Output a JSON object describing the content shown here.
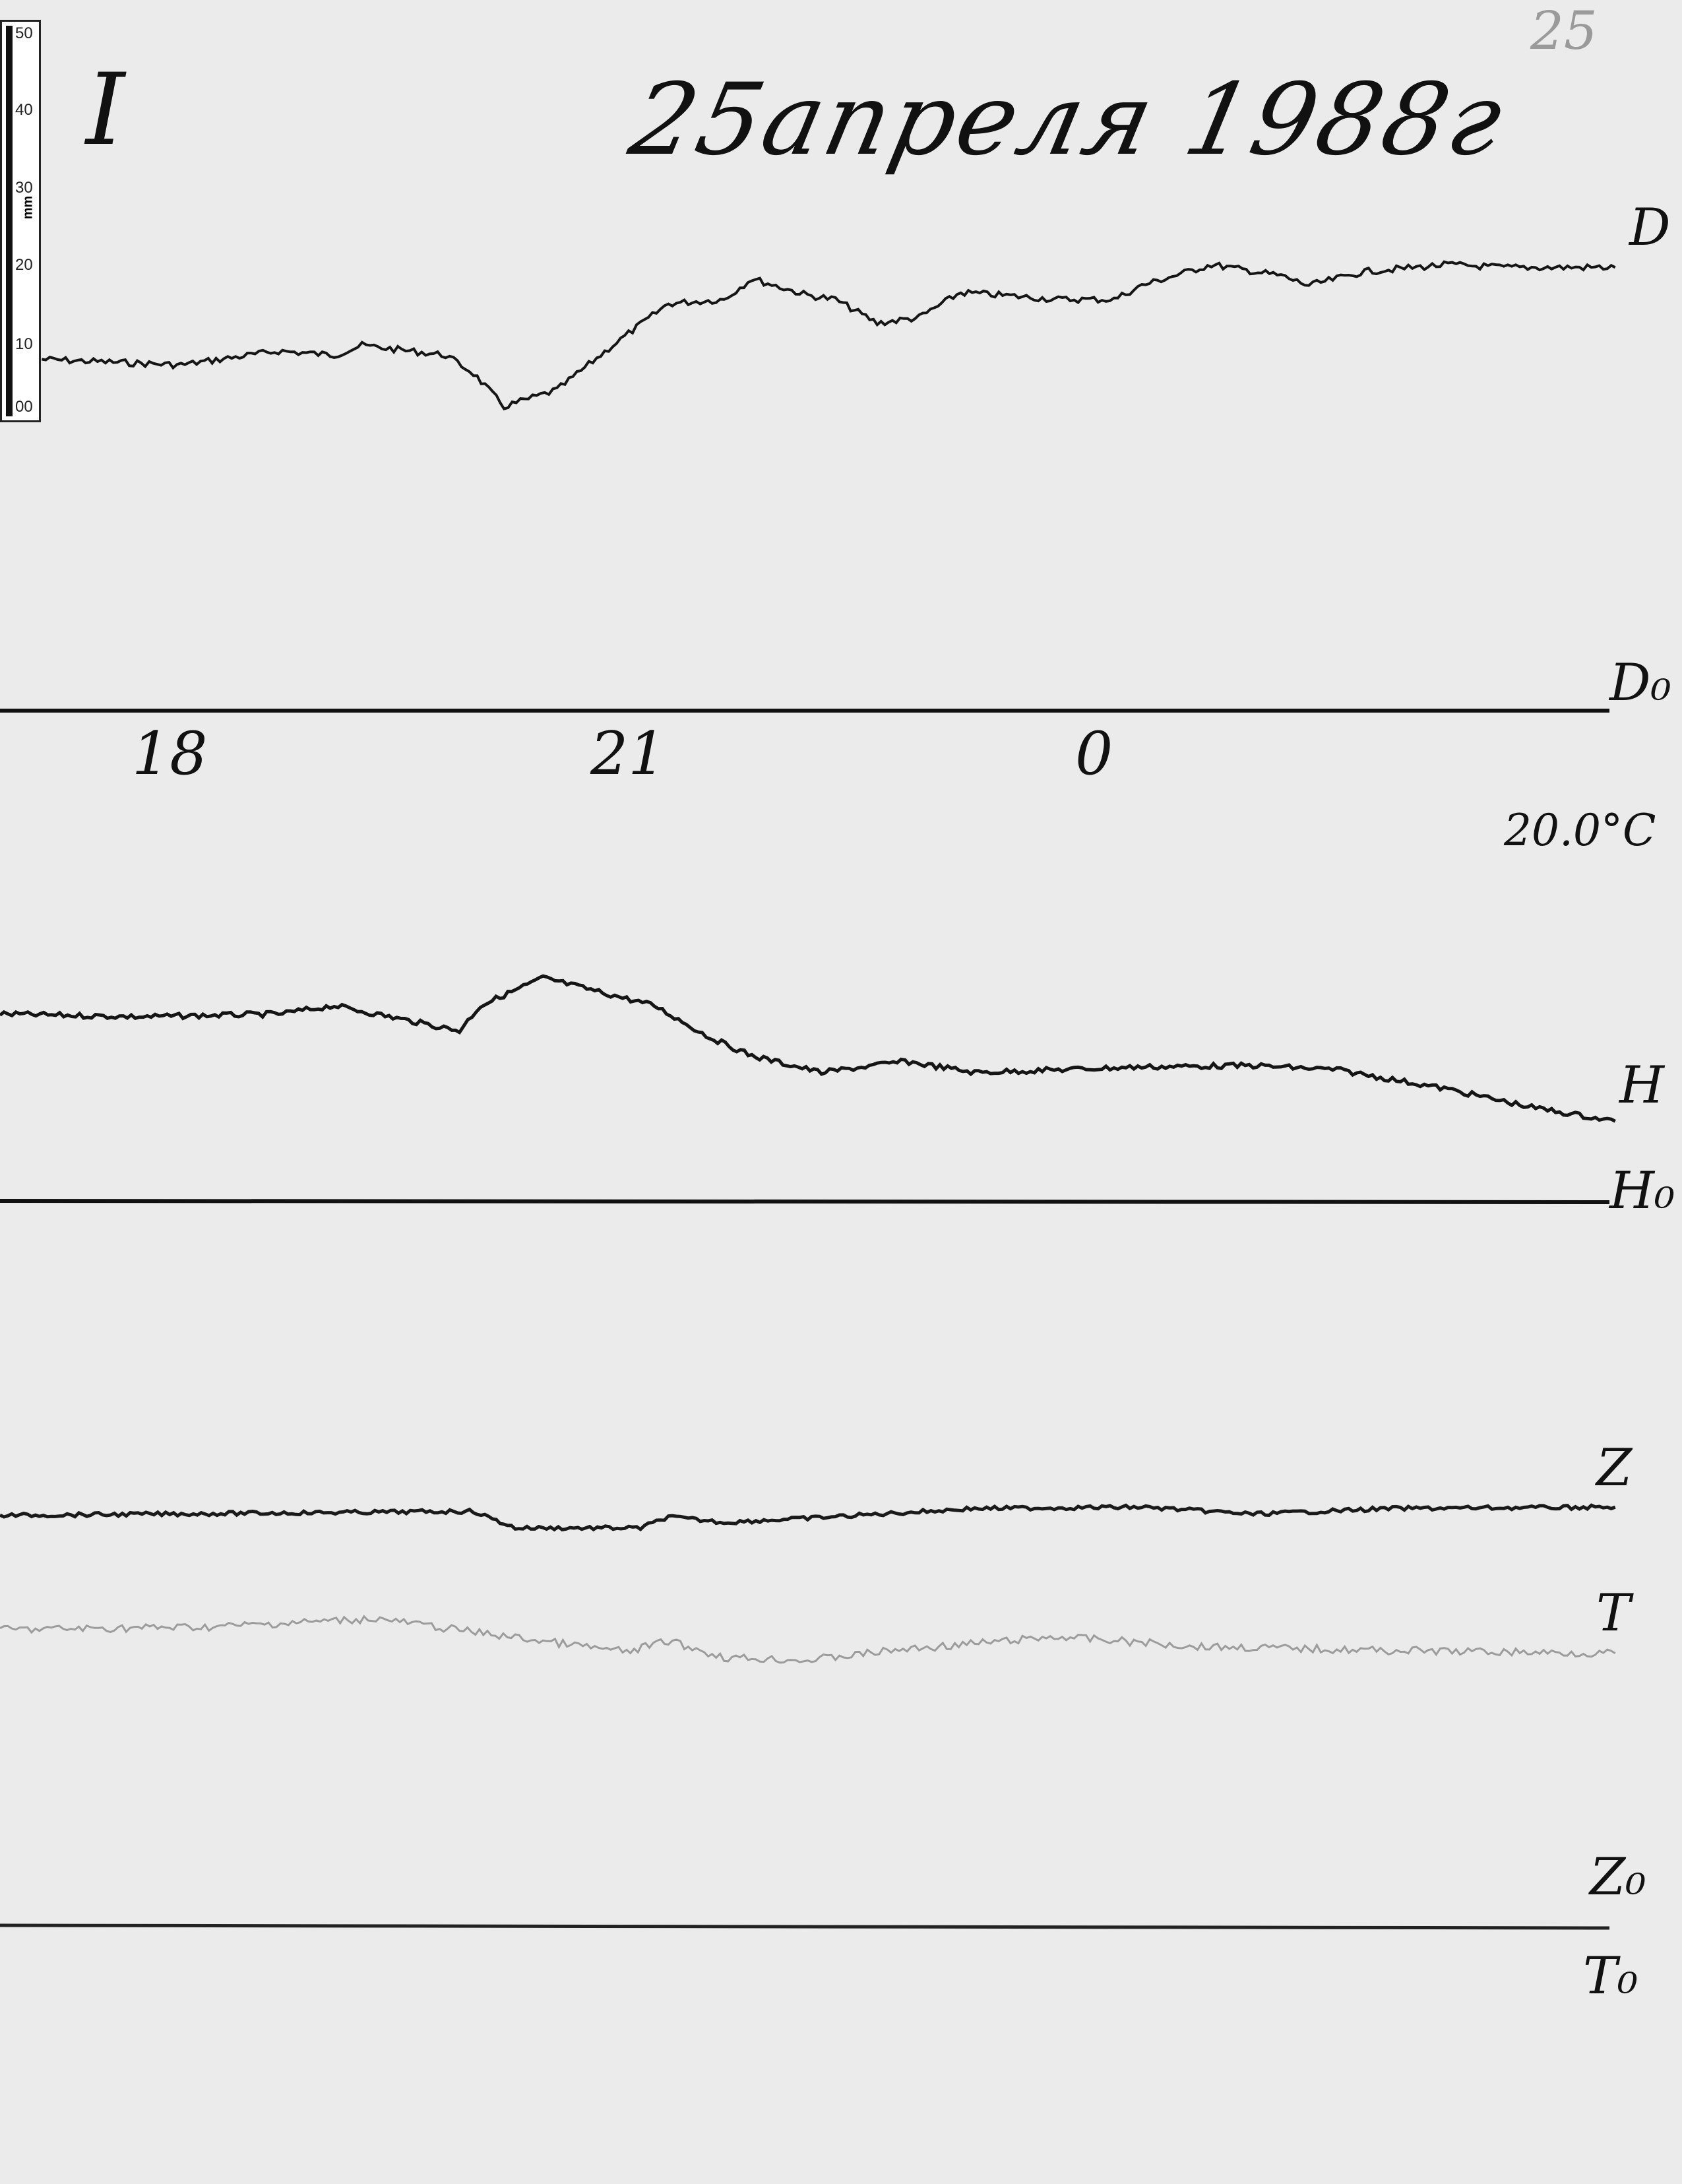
{
  "header": {
    "roman_numeral": "I",
    "date": "25апреля 1988г",
    "page_number": "25"
  },
  "ruler": {
    "unit": "mm",
    "marks": [
      "50",
      "40",
      "30",
      "20",
      "10",
      "00"
    ]
  },
  "time_axis": {
    "labels": [
      "18",
      "21",
      "0"
    ]
  },
  "temperature_note": "20.0°C",
  "traces": {
    "D": {
      "label": "D",
      "baseline_label": "D₀",
      "color": "#151515"
    },
    "H": {
      "label": "H",
      "baseline_label": "H₀",
      "color": "#151515"
    },
    "Z": {
      "label": "Z",
      "baseline_label": "Z₀",
      "color": "#1a1a1a"
    },
    "T": {
      "label": "T",
      "baseline_label": "T₀",
      "color": "#9c9c9c"
    }
  }
}
